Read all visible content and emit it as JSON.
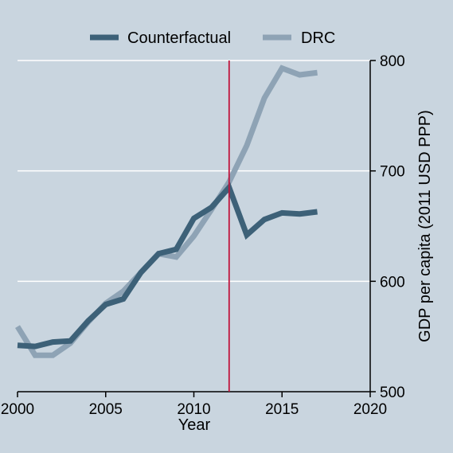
{
  "chart_data": {
    "type": "line",
    "title": "",
    "xlabel": "Year",
    "ylabel": "GDP per capita (2011 USD PPP)",
    "xlim": [
      2000,
      2020
    ],
    "ylim": [
      500,
      800
    ],
    "x_ticks": [
      2000,
      2005,
      2010,
      2015,
      2020
    ],
    "y_ticks": [
      500,
      600,
      700,
      800
    ],
    "grid": true,
    "legend_position": "top",
    "treatment_line_x": 2012,
    "treatment_line_color": "#c0143c",
    "x": [
      2000,
      2001,
      2002,
      2003,
      2004,
      2005,
      2006,
      2007,
      2008,
      2009,
      2010,
      2011,
      2012,
      2013,
      2014,
      2015,
      2016,
      2017
    ],
    "series": [
      {
        "name": "Counterfactual",
        "color": "#3d6178",
        "values": [
          542,
          541,
          545,
          546,
          564,
          579,
          584,
          608,
          625,
          629,
          657,
          667,
          685,
          642,
          656,
          662,
          661,
          663
        ]
      },
      {
        "name": "DRC",
        "color": "#8ea3b5",
        "values": [
          559,
          533,
          533,
          544,
          563,
          580,
          591,
          608,
          625,
          622,
          641,
          665,
          690,
          723,
          766,
          793,
          787,
          789
        ]
      }
    ]
  }
}
